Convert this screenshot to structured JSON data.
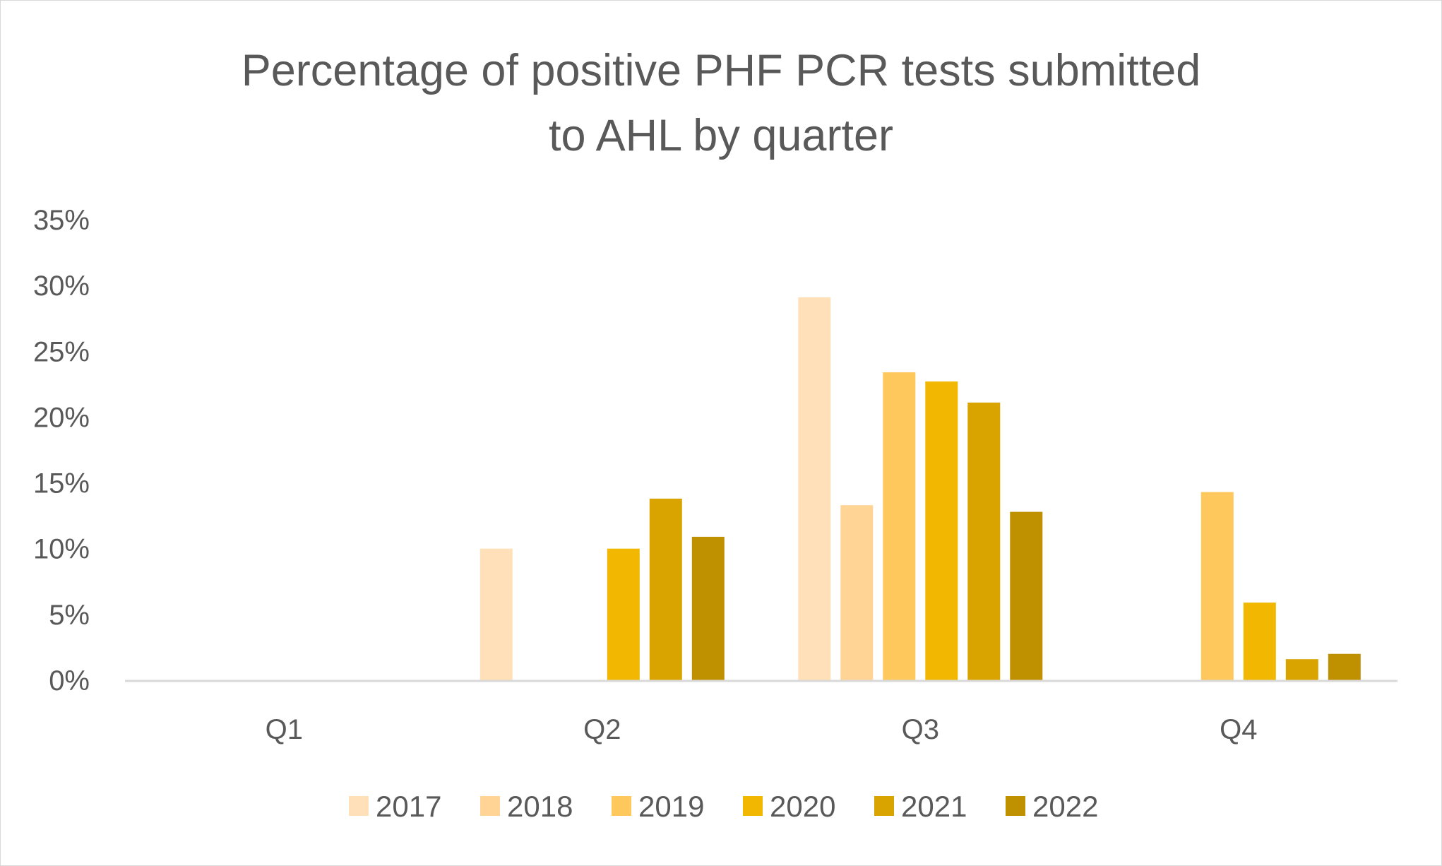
{
  "chart_data": {
    "type": "bar",
    "title": "Percentage of positive PHF PCR tests submitted to AHL by quarter",
    "title_lines": [
      "Percentage of positive PHF PCR tests submitted",
      "to AHL by quarter"
    ],
    "xlabel": "",
    "ylabel": "",
    "categories": [
      "Q1",
      "Q2",
      "Q3",
      "Q4"
    ],
    "ylim": [
      0,
      35
    ],
    "y_ticks": [
      0,
      5,
      10,
      15,
      20,
      25,
      30,
      35
    ],
    "y_tick_labels": [
      "0%",
      "5%",
      "10%",
      "15%",
      "20%",
      "25%",
      "30%",
      "35%"
    ],
    "grid": false,
    "legend_position": "bottom",
    "series": [
      {
        "name": "2017",
        "color": "#FFE0B8",
        "values": [
          0,
          10.0,
          29.1,
          0
        ]
      },
      {
        "name": "2018",
        "color": "#FFD494",
        "values": [
          0,
          0,
          13.3,
          0
        ]
      },
      {
        "name": "2019",
        "color": "#FFC85C",
        "values": [
          0,
          0,
          23.4,
          14.3
        ]
      },
      {
        "name": "2020",
        "color": "#F2B700",
        "values": [
          0,
          10.0,
          22.7,
          5.9
        ]
      },
      {
        "name": "2021",
        "color": "#D9A400",
        "values": [
          0,
          13.8,
          21.1,
          1.6
        ]
      },
      {
        "name": "2022",
        "color": "#BF9000",
        "values": [
          0,
          10.9,
          12.8,
          2.0
        ]
      }
    ]
  }
}
